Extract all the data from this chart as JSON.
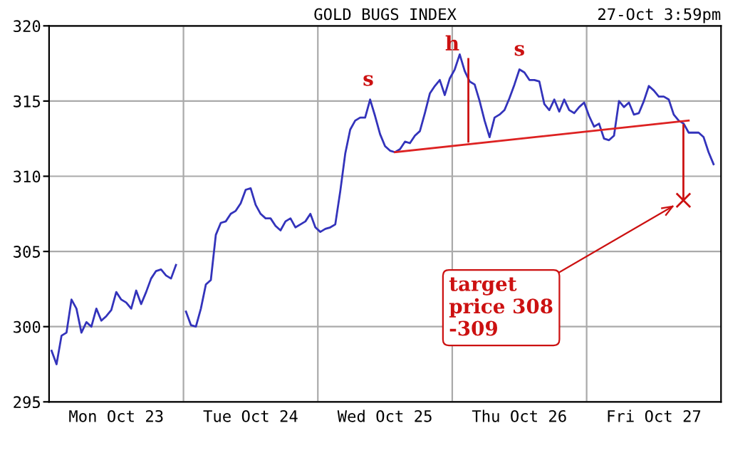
{
  "chart_data": {
    "type": "line",
    "title": "GOLD BUGS INDEX",
    "subtitle": "27-Oct 3:59pm",
    "categories": [
      null,
      null,
      null,
      null,
      null,
      null,
      null,
      null,
      null,
      null,
      null,
      null,
      null,
      "Mon Oct 23",
      null,
      null,
      null,
      null,
      null,
      null,
      null,
      null,
      null,
      null,
      null,
      null,
      null,
      null,
      null,
      null,
      null,
      null,
      null,
      null,
      null,
      null,
      null,
      null,
      null,
      null,
      "Tue Oct 24",
      null,
      null,
      null,
      null,
      null,
      null,
      null,
      null,
      null,
      null,
      null,
      null,
      null,
      null,
      null,
      null,
      null,
      null,
      null,
      null,
      null,
      null,
      null,
      null,
      null,
      null,
      "Wed Oct 25",
      null,
      null,
      null,
      null,
      null,
      null,
      null,
      null,
      null,
      null,
      null,
      null,
      null,
      null,
      null,
      null,
      null,
      null,
      null,
      null,
      null,
      null,
      null,
      null,
      null,
      null,
      "Thu Oct 26",
      null,
      null,
      null,
      null,
      null,
      null,
      null,
      null,
      null,
      null,
      null,
      null,
      null,
      null,
      null,
      null,
      null,
      null,
      null,
      null,
      null,
      null,
      null,
      null,
      null,
      null,
      "Fri Oct 27",
      null,
      null,
      null,
      null,
      null,
      null,
      null,
      null,
      null,
      null,
      null,
      null,
      null
    ],
    "ylim": [
      295,
      320
    ],
    "yticks": [
      295,
      300,
      305,
      310,
      315,
      320
    ],
    "grid": true,
    "series": [
      {
        "color": "#3333bb",
        "values": [
          298.4,
          297.5,
          299.4,
          299.6,
          301.8,
          301.2,
          299.6,
          300.3,
          300.0,
          301.2,
          300.4,
          300.7,
          301.1,
          302.3,
          301.8,
          301.6,
          301.2,
          302.4,
          301.5,
          302.3,
          303.2,
          303.7,
          303.8,
          303.4,
          303.2,
          304.1,
          null,
          null,
          null,
          null,
          null,
          null,
          null,
          null,
          null,
          null,
          null,
          null,
          null,
          null,
          null,
          null,
          null,
          null,
          null,
          null,
          null,
          null,
          null,
          null,
          null,
          null,
          null,
          null,
          null,
          null,
          null,
          null,
          null,
          null,
          null,
          null,
          null,
          null,
          null,
          null,
          null,
          null,
          null,
          null,
          null,
          null,
          null,
          null,
          null,
          null,
          null,
          null,
          null,
          null,
          null,
          null,
          null,
          null,
          null,
          null,
          null,
          null,
          null,
          null,
          null,
          null,
          null,
          null,
          null,
          null,
          null,
          null,
          null,
          null,
          null,
          null,
          null,
          null,
          null,
          null,
          null,
          null,
          null,
          null,
          null,
          null,
          null,
          null,
          null,
          null,
          null,
          null,
          null,
          null,
          null,
          null,
          null,
          null,
          null,
          null,
          null,
          null,
          null,
          null,
          null,
          null,
          null,
          null,
          null
        ]
      },
      {
        "color": "#3333bb",
        "values": [
          null,
          null,
          null,
          null,
          null,
          null,
          null,
          null,
          null,
          null,
          null,
          null,
          null,
          null,
          null,
          null,
          null,
          null,
          null,
          null,
          null,
          null,
          null,
          null,
          null,
          null,
          null,
          301.0,
          300.1,
          300.0,
          301.2,
          302.8,
          303.1,
          306.1,
          306.9,
          307.0,
          307.5,
          307.7,
          308.2,
          309.1,
          309.2,
          308.1,
          307.5,
          307.2,
          307.2,
          306.7,
          306.4,
          307.0,
          307.2,
          306.6,
          306.8,
          307.0,
          307.5,
          306.6,
          306.3,
          306.5,
          306.6,
          306.8,
          309.0,
          311.5,
          313.1,
          313.7,
          313.9,
          313.9,
          315.1,
          314.0,
          312.8,
          312.0,
          311.7,
          311.6,
          311.8,
          312.3,
          312.2,
          312.7,
          313.0,
          314.2,
          315.5,
          316.0,
          316.4,
          315.4,
          316.5,
          317.1,
          318.1,
          317.0,
          316.3,
          316.1,
          315.0,
          313.7,
          312.6,
          313.9,
          314.1,
          314.4,
          315.2,
          316.1,
          317.1,
          316.9,
          316.4,
          316.4,
          316.3,
          314.8,
          314.4,
          315.1,
          314.3,
          315.1,
          314.4,
          314.2,
          314.6,
          314.9,
          314.0,
          313.3,
          313.5,
          312.5,
          312.4,
          312.7,
          315.0,
          314.6,
          314.9,
          314.1,
          314.2,
          315.0,
          316.0,
          315.7,
          315.3,
          315.3,
          315.1,
          314.1,
          313.7,
          313.5,
          312.9,
          312.9,
          312.9,
          312.6,
          311.6,
          310.8,
          null
        ]
      },
      {
        "color": "#dd2222",
        "values": [
          null,
          null,
          null,
          null,
          null,
          null,
          null,
          null,
          null,
          null,
          null,
          null,
          null,
          null,
          null,
          null,
          null,
          null,
          null,
          null,
          null,
          null,
          null,
          null,
          null,
          null,
          null,
          null,
          null,
          null,
          null,
          null,
          null,
          null,
          null,
          null,
          null,
          null,
          null,
          null,
          null,
          null,
          null,
          null,
          null,
          null,
          null,
          null,
          null,
          null,
          null,
          null,
          null,
          null,
          null,
          null,
          null,
          null,
          null,
          null,
          null,
          null,
          null,
          null,
          null,
          null,
          null,
          null,
          null,
          311.6,
          null,
          null,
          null,
          null,
          null,
          null,
          null,
          null,
          null,
          null,
          null,
          null,
          null,
          null,
          null,
          null,
          null,
          null,
          null,
          null,
          null,
          null,
          null,
          null,
          null,
          null,
          null,
          null,
          null,
          null,
          null,
          null,
          null,
          null,
          null,
          null,
          null,
          null,
          null,
          null,
          null,
          null,
          null,
          null,
          null,
          null,
          null,
          null,
          null,
          null,
          null,
          null,
          null,
          null,
          null,
          null,
          null,
          null,
          313.7,
          null,
          null,
          null,
          null,
          null,
          null
        ]
      }
    ],
    "annotations": [
      "s",
      {
        "text": "h",
        "y": 318.1
      },
      "s",
      "target\nprice 308\n-309"
    ]
  }
}
